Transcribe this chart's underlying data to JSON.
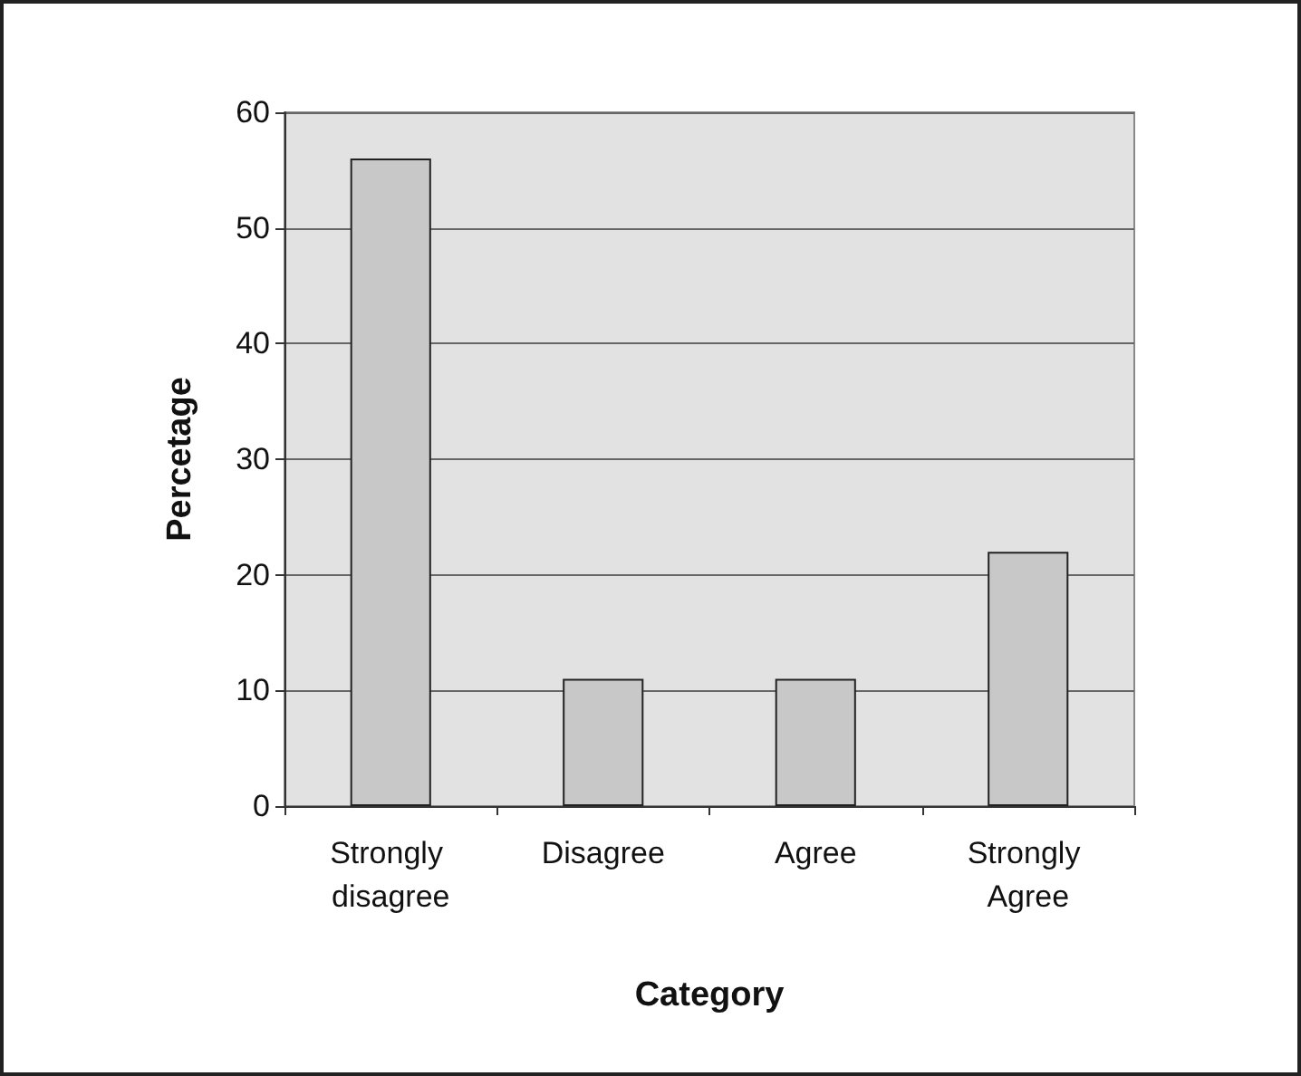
{
  "chart_data": {
    "type": "bar",
    "xlabel": "Category",
    "ylabel": "Percetage",
    "categories": [
      "Strongly disagree",
      "Disagree",
      "Agree",
      "Strongly Agree"
    ],
    "values": [
      56,
      11,
      11,
      22
    ],
    "color": "#c8c8c8",
    "ylim": [
      0,
      60
    ],
    "yticks": [
      0,
      10,
      20,
      30,
      40,
      50,
      60
    ],
    "grid": "y"
  }
}
